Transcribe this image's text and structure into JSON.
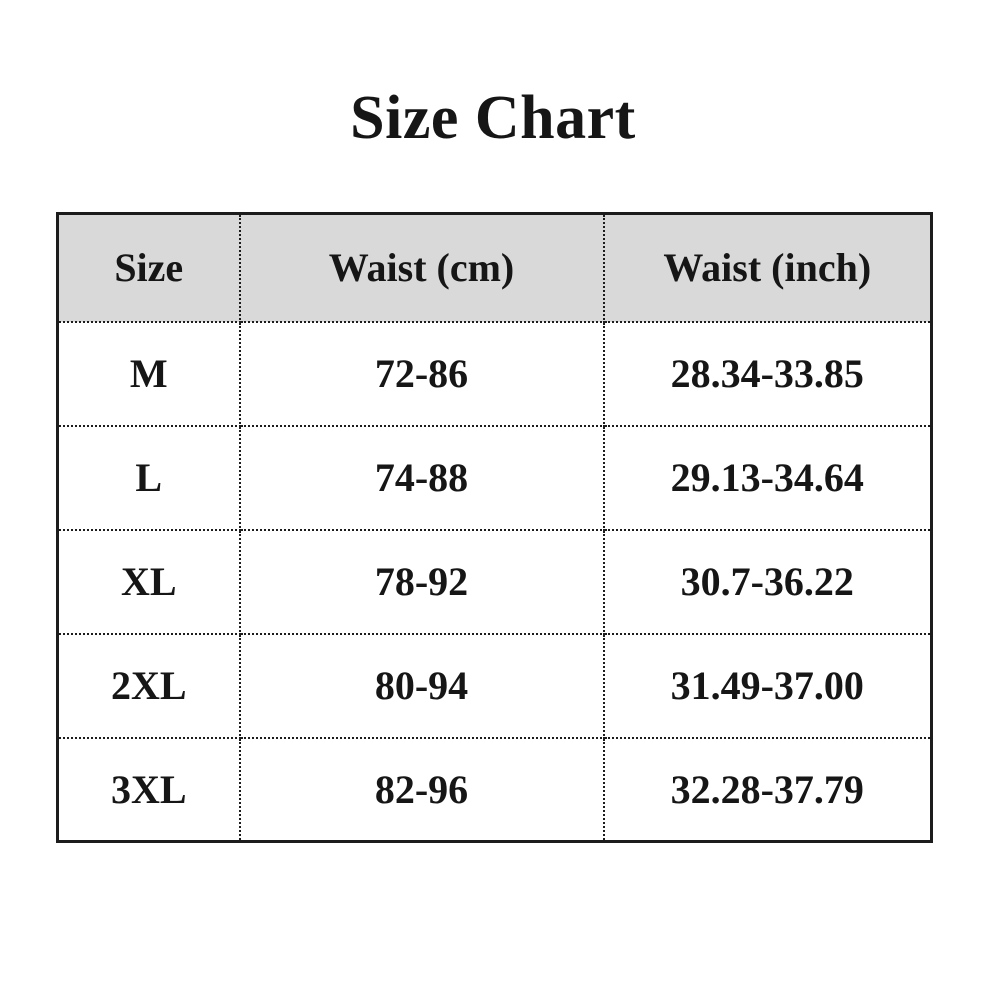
{
  "title": "Size Chart",
  "table": {
    "headers": [
      "Size",
      "Waist (cm)",
      "Waist (inch)"
    ],
    "rows": [
      [
        "M",
        "72-86",
        "28.34-33.85"
      ],
      [
        "L",
        "74-88",
        "29.13-34.64"
      ],
      [
        "XL",
        "78-92",
        "30.7-36.22"
      ],
      [
        "2XL",
        "80-94",
        "31.49-37.00"
      ],
      [
        "3XL",
        "82-96",
        "32.28-37.79"
      ]
    ]
  },
  "colors": {
    "page_bg": "#ffffff",
    "header_bg": "#d9d9d9",
    "border": "#1c1c1c",
    "text": "#161616"
  }
}
